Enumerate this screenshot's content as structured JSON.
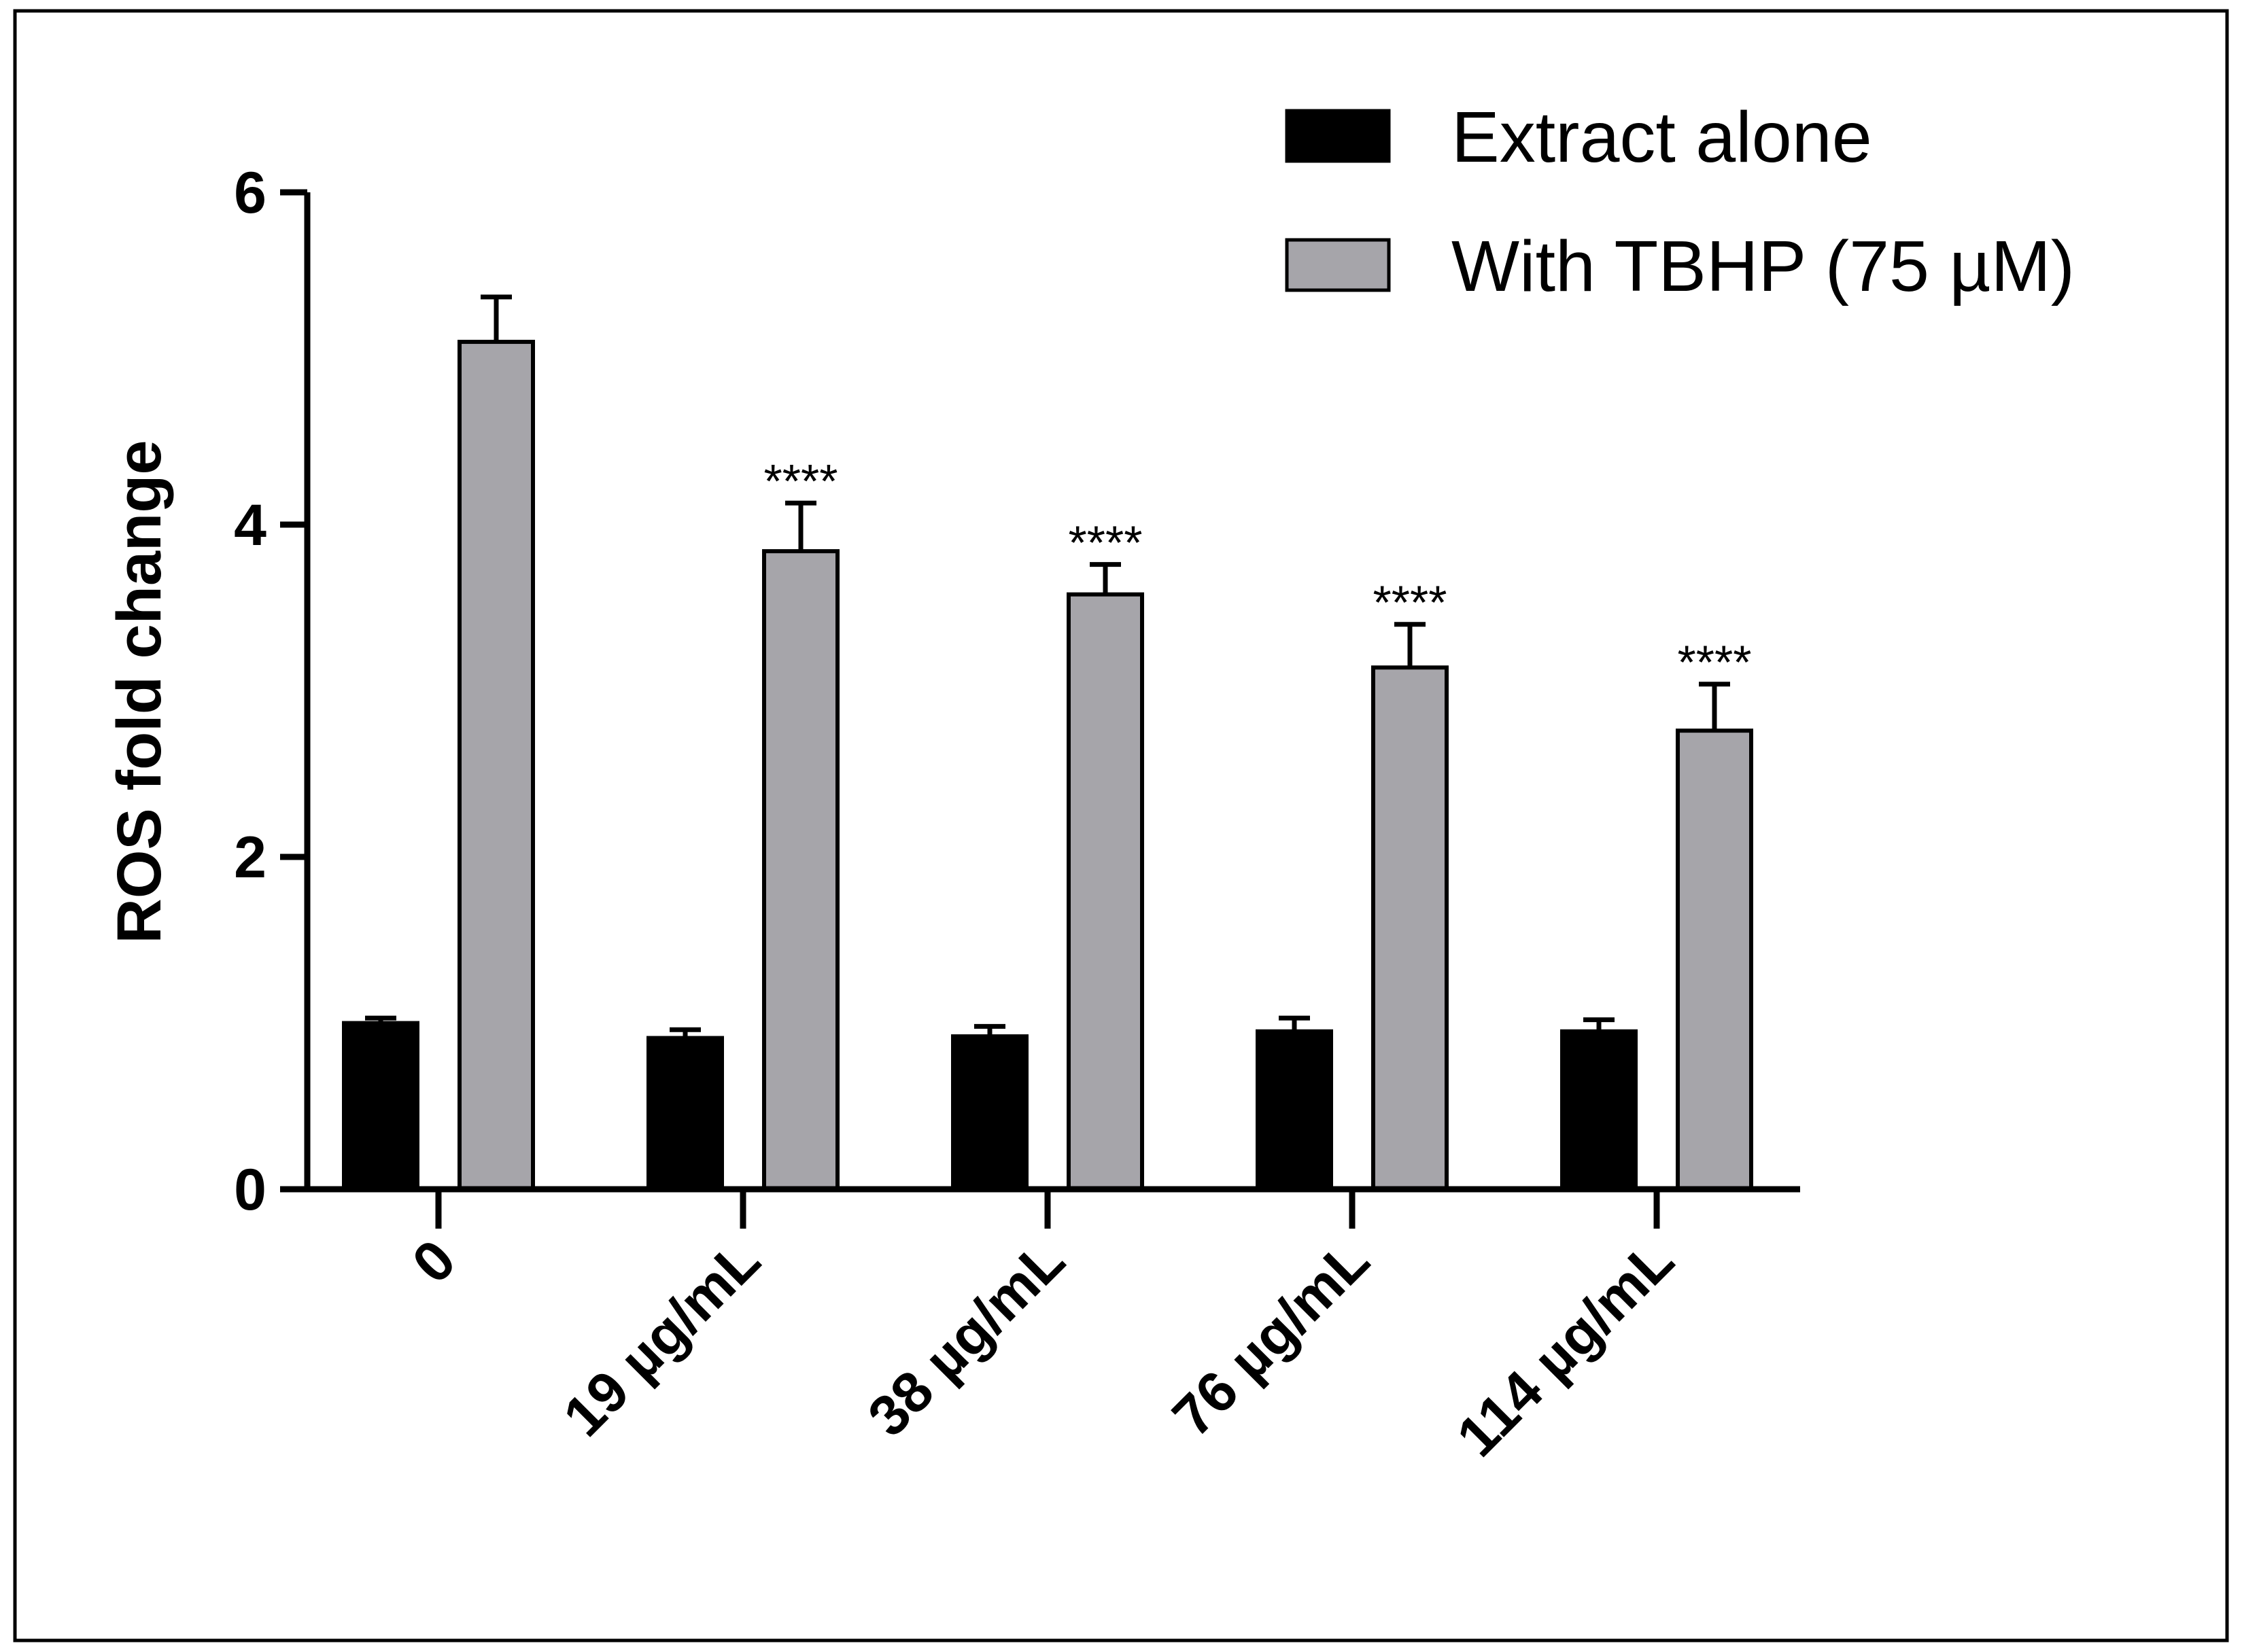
{
  "chart_data": {
    "type": "bar",
    "title": "",
    "xlabel": "",
    "ylabel": "ROS fold change",
    "ylim": [
      0,
      6
    ],
    "yticks": [
      0,
      2,
      4,
      6
    ],
    "categories": [
      "0",
      "19 µg/mL",
      "38 µg/mL",
      "76 µg/mL",
      "114 µg/mL"
    ],
    "legend_position": "top-right",
    "series": [
      {
        "name": "Extract alone",
        "color": "#000000",
        "values": [
          1.0,
          0.91,
          0.92,
          0.95,
          0.95
        ],
        "errors": [
          0.03,
          0.05,
          0.06,
          0.08,
          0.07
        ],
        "significance": [
          "",
          "",
          "",
          "",
          ""
        ]
      },
      {
        "name": "With TBHP (75 µM)",
        "color": "#a6a5aa",
        "values": [
          5.1,
          3.84,
          3.58,
          3.14,
          2.76
        ],
        "errors": [
          0.27,
          0.29,
          0.18,
          0.26,
          0.28
        ],
        "significance": [
          "",
          "****",
          "****",
          "****",
          "****"
        ]
      }
    ]
  }
}
